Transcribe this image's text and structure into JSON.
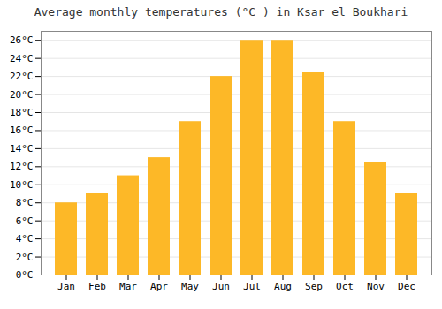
{
  "chart_data": {
    "type": "bar",
    "title": "Average monthly temperatures (°C ) in Ksar el Boukhari",
    "categories": [
      "Jan",
      "Feb",
      "Mar",
      "Apr",
      "May",
      "Jun",
      "Jul",
      "Aug",
      "Sep",
      "Oct",
      "Nov",
      "Dec"
    ],
    "values": [
      8,
      9,
      11,
      13,
      17,
      22,
      26,
      26,
      22.5,
      17,
      12.5,
      9
    ],
    "color": "#FDB827",
    "ylim": [
      0,
      27
    ],
    "yticks": [
      {
        "value": 0,
        "label": "0°C"
      },
      {
        "value": 2,
        "label": "2°C"
      },
      {
        "value": 4,
        "label": "4°C"
      },
      {
        "value": 6,
        "label": "6°C"
      },
      {
        "value": 8,
        "label": "8°C"
      },
      {
        "value": 10,
        "label": "10°C"
      },
      {
        "value": 12,
        "label": "12°C"
      },
      {
        "value": 14,
        "label": "14°C"
      },
      {
        "value": 16,
        "label": "16°C"
      },
      {
        "value": 18,
        "label": "18°C"
      },
      {
        "value": 20,
        "label": "20°C"
      },
      {
        "value": 22,
        "label": "22°C"
      },
      {
        "value": 24,
        "label": "24°C"
      },
      {
        "value": 26,
        "label": "26°C"
      }
    ],
    "grid": true
  }
}
